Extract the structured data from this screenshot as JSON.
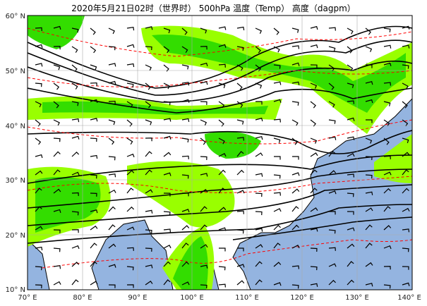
{
  "title": "2020年5月21日02时（世界时） 500hPa 温度（Temp） 高度（dagpm）",
  "axes": {
    "x_ticks": [
      "70° E",
      "80° E",
      "90° E",
      "100° E",
      "110° E",
      "120° E",
      "130° E",
      "140° E"
    ],
    "y_ticks": [
      "60° N",
      "50° N",
      "40° N",
      "30° N",
      "20° N",
      "10° N"
    ],
    "lon_range": [
      70,
      140
    ],
    "lat_range": [
      10,
      60
    ]
  },
  "colors": {
    "ocean": "#94b4e0",
    "land": "#ffffff",
    "precip_light": "#99ff00",
    "precip_mid": "#33dd00",
    "precip_heavy": "#00aa00",
    "height_contour": "#000000",
    "temp_contour": "#ff0000",
    "grid": "#aaaaaa"
  }
}
